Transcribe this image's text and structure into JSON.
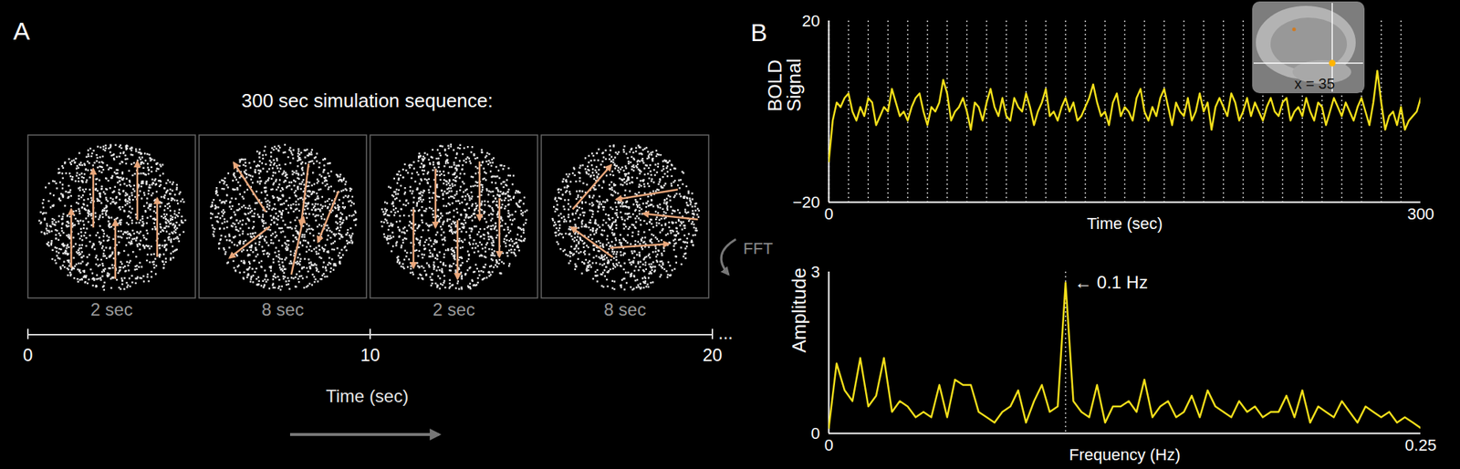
{
  "diagram": {
    "label": "A",
    "title": "300 sec simulation sequence:",
    "frames": [
      "2 sec",
      "8 sec",
      "2 sec",
      "8 sec"
    ],
    "timeline": {
      "ticks": [
        0,
        10,
        20
      ],
      "continuation": "...",
      "label": "Time (sec)"
    }
  },
  "panel_label": "B",
  "chart_data": [
    {
      "type": "line",
      "color": "#f4df1a",
      "x_label": "Time (sec)",
      "y_label": "BOLD Signal",
      "inset_label": "x = 35",
      "xlim": [
        0,
        300
      ],
      "ylim": [
        -20,
        20
      ],
      "xticks": [
        0,
        300
      ],
      "yticks": [
        {
          "value": -20,
          "label": "−20"
        },
        20
      ],
      "stimulus_onsets": [
        0,
        10,
        20,
        30,
        40,
        50,
        60,
        70,
        80,
        90,
        100,
        110,
        120,
        130,
        140,
        150,
        160,
        170,
        180,
        190,
        200,
        210,
        220,
        230,
        240,
        250,
        260,
        270,
        280,
        290
      ],
      "x": [
        0,
        2,
        4,
        6,
        8,
        10,
        12,
        14,
        16,
        18,
        20,
        22,
        24,
        26,
        28,
        30,
        32,
        34,
        36,
        38,
        40,
        42,
        44,
        46,
        48,
        50,
        52,
        54,
        56,
        58,
        60,
        62,
        64,
        66,
        68,
        70,
        72,
        74,
        76,
        78,
        80,
        82,
        84,
        86,
        88,
        90,
        92,
        94,
        96,
        98,
        100,
        102,
        104,
        106,
        108,
        110,
        112,
        114,
        116,
        118,
        120,
        122,
        124,
        126,
        128,
        130,
        132,
        134,
        136,
        138,
        140,
        142,
        144,
        146,
        148,
        150,
        152,
        154,
        156,
        158,
        160,
        162,
        164,
        166,
        168,
        170,
        172,
        174,
        176,
        178,
        180,
        182,
        184,
        186,
        188,
        190,
        192,
        194,
        196,
        198,
        200,
        202,
        204,
        206,
        208,
        210,
        212,
        214,
        216,
        218,
        220,
        222,
        224,
        226,
        228,
        230,
        232,
        234,
        236,
        238,
        240,
        242,
        244,
        246,
        248,
        250,
        252,
        254,
        256,
        258,
        260,
        262,
        264,
        266,
        268,
        270,
        272,
        274,
        276,
        278,
        280,
        282,
        284,
        286,
        288,
        290,
        292,
        294,
        296,
        298,
        300
      ],
      "values": [
        -11,
        -2,
        2,
        1,
        3,
        4,
        0,
        -2,
        1,
        -1,
        3,
        2,
        -3,
        -1,
        1,
        0,
        5,
        2,
        -1,
        0,
        -2,
        1,
        3,
        4,
        0,
        -3,
        1,
        0,
        2,
        7,
        4,
        -2,
        0,
        1,
        3,
        0,
        -4,
        2,
        1,
        -2,
        2,
        5,
        1,
        -1,
        3,
        -1,
        -2,
        3,
        1,
        0,
        4,
        1,
        -3,
        0,
        2,
        5,
        -1,
        0,
        -2,
        1,
        3,
        0,
        2,
        -2,
        -1,
        1,
        3,
        6,
        2,
        -1,
        0,
        -3,
        2,
        4,
        -1,
        1,
        0,
        -2,
        3,
        5,
        0,
        -2,
        1,
        -1,
        3,
        5,
        1,
        -3,
        2,
        0,
        -1,
        3,
        -2,
        0,
        4,
        0,
        2,
        -4,
        1,
        3,
        1,
        -1,
        4,
        2,
        -2,
        0,
        3,
        -1,
        2,
        0,
        -2,
        1,
        3,
        0,
        -1,
        2,
        3,
        -2,
        0,
        1,
        -1,
        3,
        0,
        -2,
        2,
        1,
        -3,
        0,
        3,
        1,
        -1,
        2,
        0,
        -2,
        1,
        3,
        0,
        -3,
        2,
        9,
        2,
        -4,
        -1,
        0,
        -3,
        1,
        -4,
        -2,
        -1,
        0,
        3
      ]
    },
    {
      "type": "line",
      "color": "#f4df1a",
      "x_label": "Frequency (Hz)",
      "y_label": "Amplitude",
      "transform_label": "FFT",
      "xlim": [
        0,
        0.25
      ],
      "ylim": [
        0,
        3
      ],
      "xticks": [
        0,
        0.25
      ],
      "yticks": [
        0,
        3
      ],
      "annotations": [
        {
          "x": 0.1,
          "text": "← 0.1 Hz"
        }
      ],
      "x": [
        0,
        0.0033,
        0.0067,
        0.01,
        0.0133,
        0.0167,
        0.02,
        0.0233,
        0.0267,
        0.03,
        0.0333,
        0.0367,
        0.04,
        0.0433,
        0.0467,
        0.05,
        0.0533,
        0.0567,
        0.06,
        0.0633,
        0.0667,
        0.07,
        0.0733,
        0.0767,
        0.08,
        0.0833,
        0.0867,
        0.09,
        0.0933,
        0.0967,
        0.1,
        0.1033,
        0.1067,
        0.11,
        0.1133,
        0.1167,
        0.12,
        0.1233,
        0.1267,
        0.13,
        0.1333,
        0.1367,
        0.14,
        0.1433,
        0.1467,
        0.15,
        0.1533,
        0.1567,
        0.16,
        0.1633,
        0.1667,
        0.17,
        0.1733,
        0.1767,
        0.18,
        0.1833,
        0.1867,
        0.19,
        0.1933,
        0.1967,
        0.2,
        0.2033,
        0.2067,
        0.21,
        0.2133,
        0.2167,
        0.22,
        0.2233,
        0.2267,
        0.23,
        0.2333,
        0.2367,
        0.24,
        0.2433,
        0.2467,
        0.25
      ],
      "values": [
        0.1,
        1.3,
        0.8,
        0.6,
        1.4,
        0.5,
        0.7,
        1.4,
        0.4,
        0.6,
        0.5,
        0.3,
        0.4,
        0.3,
        0.9,
        0.3,
        1.0,
        0.9,
        0.9,
        0.4,
        0.3,
        0.2,
        0.4,
        0.5,
        0.8,
        0.2,
        0.6,
        0.9,
        0.4,
        0.5,
        2.8,
        0.6,
        0.4,
        0.3,
        0.9,
        0.2,
        0.5,
        0.5,
        0.6,
        0.4,
        1.0,
        0.3,
        0.5,
        0.6,
        0.3,
        0.4,
        0.7,
        0.3,
        0.8,
        0.5,
        0.4,
        0.3,
        0.6,
        0.4,
        0.5,
        0.3,
        0.4,
        0.4,
        0.7,
        0.3,
        0.8,
        0.2,
        0.5,
        0.4,
        0.3,
        0.6,
        0.4,
        0.2,
        0.5,
        0.4,
        0.3,
        0.4,
        0.2,
        0.3,
        0.2,
        0.1
      ]
    }
  ]
}
